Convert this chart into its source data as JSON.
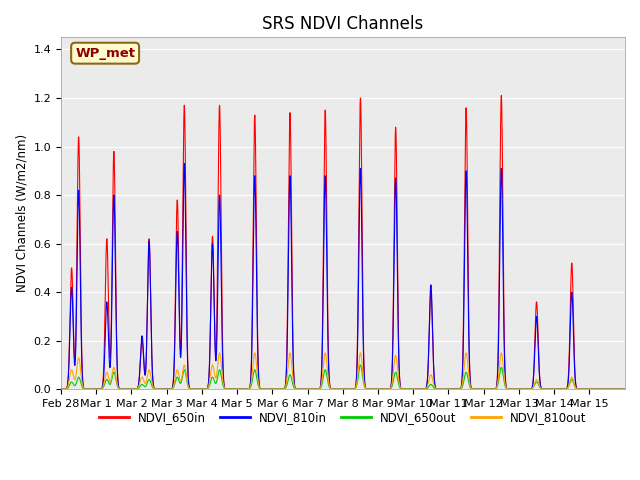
{
  "title": "SRS NDVI Channels",
  "ylabel": "NDVI Channels (W/m2/nm)",
  "annotation": "WP_met",
  "annotation_color": "#8B0000",
  "annotation_bg": "#FFFACD",
  "legend_labels": [
    "NDVI_650in",
    "NDVI_810in",
    "NDVI_650out",
    "NDVI_810out"
  ],
  "legend_colors": [
    "#FF0000",
    "#0000FF",
    "#00CC00",
    "#FFA500"
  ],
  "line_width": 0.8,
  "ylim": [
    0.0,
    1.45
  ],
  "bg_color": "#EBEBEB",
  "fig_bg": "#FFFFFF",
  "days": [
    "Feb 28",
    "Mar 1",
    "Mar 2",
    "Mar 3",
    "Mar 4",
    "Mar 5",
    "Mar 6",
    "Mar 7",
    "Mar 8",
    "Mar 9",
    "Mar 10",
    "Mar 11",
    "Mar 12",
    "Mar 13",
    "Mar 14",
    "Mar 15"
  ],
  "peak_650in": [
    1.04,
    0.98,
    0.62,
    1.17,
    1.17,
    1.13,
    1.14,
    1.15,
    1.2,
    1.08,
    0.4,
    1.16,
    1.21,
    0.36,
    0.52,
    0.0
  ],
  "peak_810in": [
    0.82,
    0.8,
    0.61,
    0.93,
    0.8,
    0.88,
    0.88,
    0.88,
    0.91,
    0.87,
    0.43,
    0.9,
    0.91,
    0.3,
    0.4,
    0.0
  ],
  "peak_650out": [
    0.05,
    0.07,
    0.04,
    0.08,
    0.08,
    0.08,
    0.06,
    0.08,
    0.1,
    0.07,
    0.02,
    0.07,
    0.09,
    0.03,
    0.04,
    0.0
  ],
  "peak_810out": [
    0.13,
    0.09,
    0.08,
    0.1,
    0.15,
    0.15,
    0.15,
    0.15,
    0.15,
    0.14,
    0.06,
    0.15,
    0.15,
    0.04,
    0.05,
    0.0
  ],
  "double_peak_days": [
    0,
    1,
    2,
    3,
    4
  ],
  "peak2_650in": [
    0.5,
    0.62,
    0.2,
    0.78,
    0.63
  ],
  "peak2_810in": [
    0.42,
    0.36,
    0.22,
    0.65,
    0.6
  ],
  "peak2_650out": [
    0.03,
    0.04,
    0.02,
    0.05,
    0.05
  ],
  "peak2_810out": [
    0.08,
    0.07,
    0.05,
    0.08,
    0.1
  ]
}
